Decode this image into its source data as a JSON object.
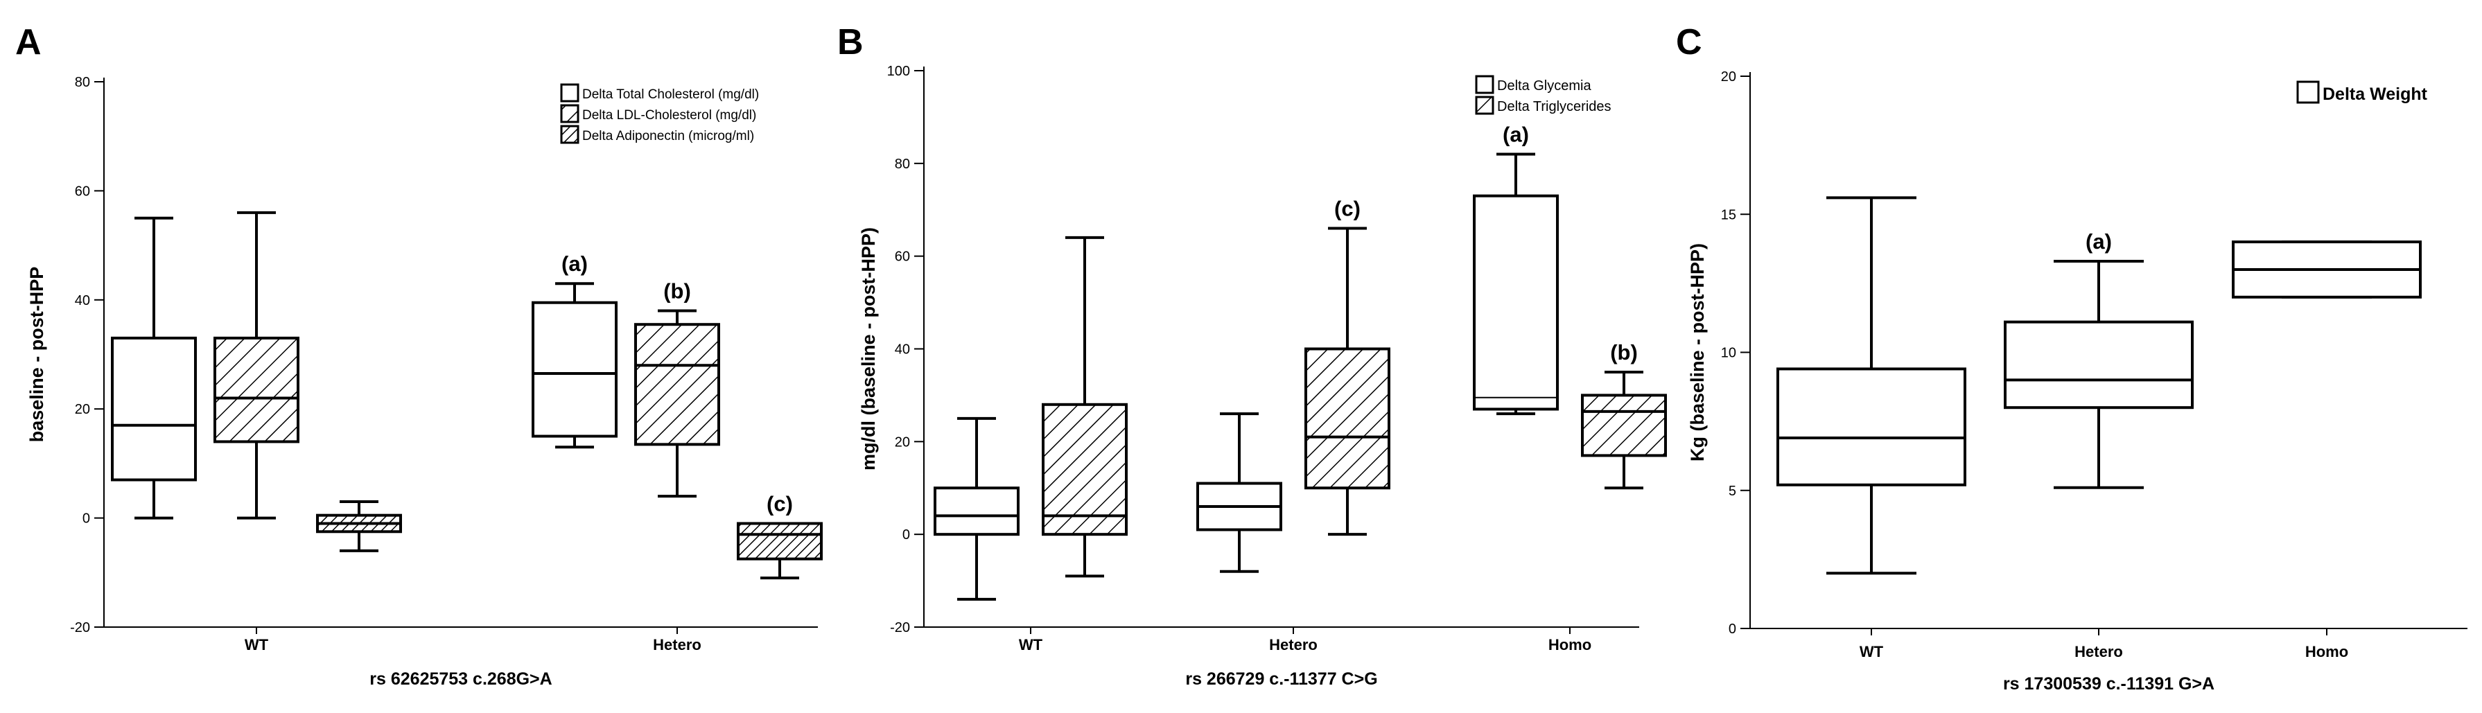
{
  "chart_data": [
    {
      "panel_letter": "A",
      "type": "boxplot",
      "xlabel": "rs 62625753 c.268G>A",
      "ylabel": "baseline - post-HPP",
      "ylim": [
        -20,
        80
      ],
      "yticks": [
        -20,
        0,
        20,
        40,
        60,
        80
      ],
      "categories": [
        "WT",
        "Hetero"
      ],
      "legend_position": "top-right",
      "series": [
        {
          "name": "Delta Total Cholesterol (mg/dl)",
          "pattern": "none",
          "boxes": [
            {
              "category": "WT",
              "min": 0,
              "q1": 7,
              "median": 17,
              "q3": 33,
              "max": 55,
              "annotation": ""
            },
            {
              "category": "Hetero",
              "min": 13,
              "q1": 15,
              "median": 26.5,
              "q3": 39.5,
              "max": 43,
              "annotation": "(a)"
            }
          ]
        },
        {
          "name": "Delta LDL-Cholesterol (mg/dl)",
          "pattern": "hatch-sparse",
          "boxes": [
            {
              "category": "WT",
              "min": 0,
              "q1": 14,
              "median": 22,
              "q3": 33,
              "max": 56,
              "annotation": ""
            },
            {
              "category": "Hetero",
              "min": 4,
              "q1": 13.5,
              "median": 28,
              "q3": 35.5,
              "max": 38,
              "annotation": "(b)"
            }
          ]
        },
        {
          "name": "Delta Adiponectin (microg/ml)",
          "pattern": "hatch-dense",
          "boxes": [
            {
              "category": "WT",
              "min": -6,
              "q1": -2.5,
              "median": -1,
              "q3": 0.5,
              "max": 3,
              "annotation": ""
            },
            {
              "category": "Hetero",
              "min": -11,
              "q1": -7.5,
              "median": -3,
              "q3": -1,
              "max": -1,
              "annotation": "(c)"
            }
          ]
        }
      ]
    },
    {
      "panel_letter": "B",
      "type": "boxplot",
      "xlabel": "rs 266729 c.-11377 C>G",
      "ylabel": "mg/dl (baseline - post-HPP)",
      "ylim": [
        -20,
        100
      ],
      "yticks": [
        -20,
        0,
        20,
        40,
        60,
        80,
        100
      ],
      "categories": [
        "WT",
        "Hetero",
        "Homo"
      ],
      "legend_position": "top-right",
      "series": [
        {
          "name": "Delta Glycemia",
          "pattern": "none",
          "boxes": [
            {
              "category": "WT",
              "min": -14,
              "q1": 0,
              "median": 4,
              "q3": 10,
              "max": 25,
              "annotation": ""
            },
            {
              "category": "Hetero",
              "min": -8,
              "q1": 1,
              "median": 6,
              "q3": 11,
              "max": 26,
              "annotation": ""
            },
            {
              "category": "Homo",
              "min": 26,
              "q1": 27,
              "median": 29.5,
              "q3": 73,
              "max": 82,
              "annotation": "(a)"
            }
          ]
        },
        {
          "name": "Delta Triglycerides",
          "pattern": "hatch-sparse",
          "boxes": [
            {
              "category": "WT",
              "min": -9,
              "q1": 0,
              "median": 4,
              "q3": 28,
              "max": 64,
              "annotation": ""
            },
            {
              "category": "Hetero",
              "min": 0,
              "q1": 10,
              "median": 21,
              "q3": 40,
              "max": 66,
              "annotation": "(c)"
            },
            {
              "category": "Homo",
              "min": 10,
              "q1": 17,
              "median": 26.5,
              "q3": 30,
              "max": 35,
              "annotation": "(b)"
            }
          ]
        }
      ]
    },
    {
      "panel_letter": "C",
      "type": "boxplot",
      "xlabel": "rs 17300539    c.-11391 G>A",
      "ylabel": "Kg (baseline - post-HPP)",
      "ylim": [
        0,
        20
      ],
      "yticks": [
        0,
        5,
        10,
        15,
        20
      ],
      "categories": [
        "WT",
        "Hetero",
        "Homo"
      ],
      "legend_position": "top-right",
      "series": [
        {
          "name": "Delta Weight",
          "pattern": "none",
          "boxes": [
            {
              "category": "WT",
              "min": 2,
              "q1": 5.2,
              "median": 6.9,
              "q3": 9.4,
              "max": 15.6,
              "annotation": ""
            },
            {
              "category": "Hetero",
              "min": 5.1,
              "q1": 8,
              "median": 9,
              "q3": 11.1,
              "max": 13.3,
              "annotation": "(a)"
            },
            {
              "category": "Homo",
              "min": 12,
              "q1": 12,
              "median": 13,
              "q3": 14,
              "max": 14,
              "annotation": ""
            }
          ]
        }
      ]
    }
  ]
}
